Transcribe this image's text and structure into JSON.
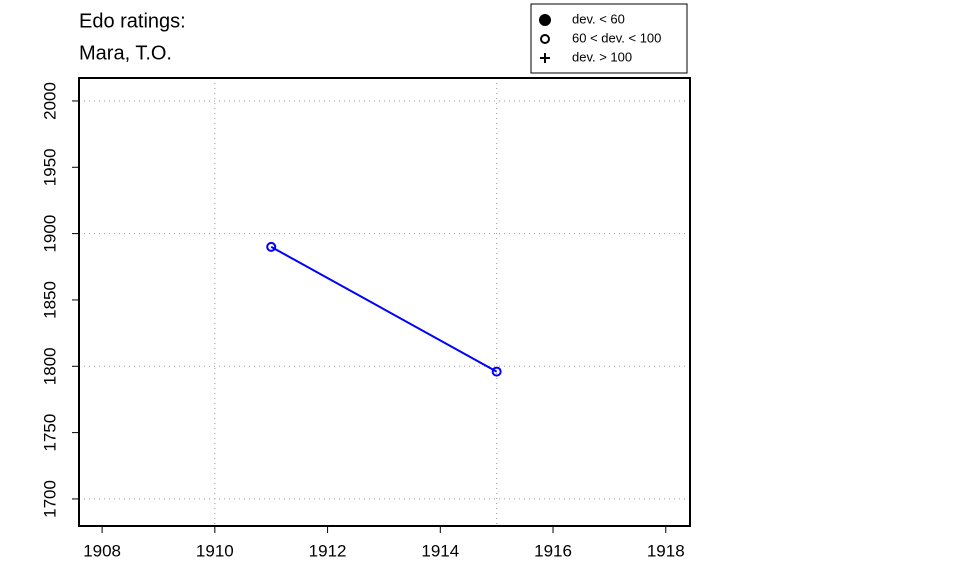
{
  "chart_data": {
    "type": "line",
    "title": [
      "Edo ratings:",
      "Mara, T.O."
    ],
    "series": [
      {
        "color": "#0000ff",
        "marker": "open-circle",
        "x": [
          1911,
          1915
        ],
        "values": [
          1890,
          1796
        ]
      }
    ],
    "xlim": [
      1907.59,
      1918.43
    ],
    "xticks": [
      1908,
      1910,
      1912,
      1914,
      1916,
      1918
    ],
    "ylim": [
      1679.6,
      2017.3
    ],
    "yticks": [
      1700,
      1750,
      1800,
      1850,
      1900,
      1950,
      2000
    ],
    "xgrid": [
      1910,
      1915
    ],
    "ygrid": [
      1700,
      1800,
      1900,
      2000
    ],
    "legend": [
      {
        "label": "dev. < 60",
        "marker": "filled-circle"
      },
      {
        "label": "60 < dev. < 100",
        "marker": "open-circle"
      },
      {
        "label": "dev. > 100",
        "marker": "plus"
      }
    ],
    "legend_position": "top-right"
  }
}
